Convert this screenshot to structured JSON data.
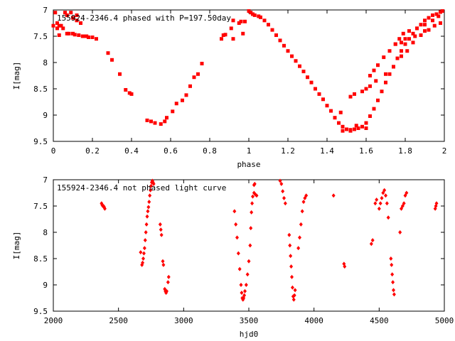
{
  "chart_data": [
    {
      "type": "scatter",
      "title": "155924-2346.4 phased with P=197.50day",
      "xlabel": "phase",
      "ylabel": "I[mag]",
      "xlim": [
        0,
        2
      ],
      "ylim": [
        7,
        9.5
      ],
      "y_inverted": true,
      "x_ticks": [
        "0",
        "0.2",
        "0.4",
        "0.6",
        "0.8",
        "1",
        "1.2",
        "1.4",
        "1.6",
        "1.8",
        "2"
      ],
      "y_ticks": [
        "7",
        "7.5",
        "8",
        "8.5",
        "9",
        "9.5"
      ],
      "marker": "filled square",
      "color": "#ff0000",
      "points": [
        [
          0.0,
          7.3
        ],
        [
          0.01,
          7.05
        ],
        [
          0.02,
          7.25
        ],
        [
          0.02,
          7.35
        ],
        [
          0.03,
          7.3
        ],
        [
          0.03,
          7.48
        ],
        [
          0.04,
          7.3
        ],
        [
          0.05,
          7.35
        ],
        [
          0.06,
          7.05
        ],
        [
          0.07,
          7.45
        ],
        [
          0.07,
          7.1
        ],
        [
          0.08,
          7.45
        ],
        [
          0.09,
          7.05
        ],
        [
          0.1,
          7.45
        ],
        [
          0.1,
          7.15
        ],
        [
          0.11,
          7.47
        ],
        [
          0.12,
          7.1
        ],
        [
          0.12,
          7.2
        ],
        [
          0.13,
          7.48
        ],
        [
          0.14,
          7.25
        ],
        [
          0.15,
          7.5
        ],
        [
          0.16,
          7.5
        ],
        [
          0.17,
          7.5
        ],
        [
          0.18,
          7.52
        ],
        [
          0.2,
          7.52
        ],
        [
          0.22,
          7.55
        ],
        [
          0.28,
          7.82
        ],
        [
          0.3,
          7.95
        ],
        [
          0.34,
          8.22
        ],
        [
          0.37,
          8.52
        ],
        [
          0.39,
          8.58
        ],
        [
          0.4,
          8.6
        ],
        [
          0.48,
          9.1
        ],
        [
          0.5,
          9.12
        ],
        [
          0.52,
          9.15
        ],
        [
          0.55,
          9.17
        ],
        [
          0.57,
          9.12
        ],
        [
          0.58,
          9.05
        ],
        [
          0.61,
          8.93
        ],
        [
          0.63,
          8.78
        ],
        [
          0.66,
          8.72
        ],
        [
          0.68,
          8.62
        ],
        [
          0.7,
          8.45
        ],
        [
          0.72,
          8.28
        ],
        [
          0.74,
          8.22
        ],
        [
          0.76,
          8.02
        ],
        [
          0.86,
          7.55
        ],
        [
          0.87,
          7.48
        ],
        [
          0.88,
          7.47
        ],
        [
          0.91,
          7.35
        ],
        [
          0.92,
          7.2
        ],
        [
          0.92,
          7.55
        ],
        [
          0.95,
          7.25
        ],
        [
          0.96,
          7.22
        ],
        [
          0.97,
          7.45
        ],
        [
          0.98,
          7.22
        ],
        [
          1.0,
          7.02
        ],
        [
          1.01,
          7.05
        ],
        [
          1.02,
          7.08
        ],
        [
          1.03,
          7.1
        ],
        [
          1.05,
          7.12
        ],
        [
          1.06,
          7.14
        ],
        [
          1.08,
          7.2
        ],
        [
          1.1,
          7.28
        ],
        [
          1.12,
          7.38
        ],
        [
          1.14,
          7.48
        ],
        [
          1.16,
          7.58
        ],
        [
          1.18,
          7.68
        ],
        [
          1.2,
          7.78
        ],
        [
          1.22,
          7.88
        ],
        [
          1.24,
          7.97
        ],
        [
          1.26,
          8.07
        ],
        [
          1.28,
          8.17
        ],
        [
          1.3,
          8.28
        ],
        [
          1.32,
          8.38
        ],
        [
          1.34,
          8.5
        ],
        [
          1.36,
          8.6
        ],
        [
          1.38,
          8.7
        ],
        [
          1.4,
          8.82
        ],
        [
          1.42,
          8.92
        ],
        [
          1.44,
          9.05
        ],
        [
          1.46,
          9.15
        ],
        [
          1.48,
          9.22
        ],
        [
          1.5,
          9.27
        ],
        [
          1.52,
          9.28
        ],
        [
          1.54,
          9.27
        ],
        [
          1.56,
          9.25
        ],
        [
          1.58,
          9.22
        ],
        [
          1.6,
          9.15
        ],
        [
          1.62,
          9.02
        ],
        [
          1.64,
          8.88
        ],
        [
          1.66,
          8.72
        ],
        [
          1.68,
          8.55
        ],
        [
          1.7,
          8.38
        ],
        [
          1.72,
          8.22
        ],
        [
          1.74,
          8.08
        ],
        [
          1.76,
          7.92
        ],
        [
          1.78,
          7.78
        ],
        [
          1.8,
          7.65
        ],
        [
          1.82,
          7.55
        ],
        [
          1.84,
          7.45
        ],
        [
          1.86,
          7.35
        ],
        [
          1.88,
          7.28
        ],
        [
          1.9,
          7.2
        ],
        [
          1.92,
          7.15
        ],
        [
          1.94,
          7.1
        ],
        [
          1.96,
          7.08
        ],
        [
          1.98,
          7.04
        ],
        [
          1.99,
          7.02
        ],
        [
          1.48,
          9.3
        ],
        [
          1.52,
          9.3
        ],
        [
          1.55,
          9.2
        ],
        [
          1.6,
          9.25
        ],
        [
          1.47,
          8.95
        ],
        [
          1.52,
          8.65
        ],
        [
          1.54,
          8.6
        ],
        [
          1.58,
          8.55
        ],
        [
          1.6,
          8.5
        ],
        [
          1.62,
          8.45
        ],
        [
          1.65,
          8.35
        ],
        [
          1.7,
          8.22
        ],
        [
          1.74,
          8.08
        ],
        [
          1.78,
          7.88
        ],
        [
          1.81,
          7.78
        ],
        [
          1.84,
          7.62
        ],
        [
          1.88,
          7.48
        ],
        [
          1.92,
          7.38
        ],
        [
          1.95,
          7.3
        ],
        [
          1.98,
          7.25
        ],
        [
          1.62,
          8.25
        ],
        [
          1.64,
          8.15
        ],
        [
          1.66,
          8.05
        ],
        [
          1.69,
          7.9
        ],
        [
          1.72,
          7.78
        ],
        [
          1.75,
          7.65
        ],
        [
          1.77,
          7.55
        ],
        [
          1.79,
          7.45
        ],
        [
          1.82,
          7.4
        ],
        [
          1.86,
          7.35
        ],
        [
          1.9,
          7.28
        ],
        [
          1.94,
          7.2
        ],
        [
          1.97,
          7.12
        ],
        [
          1.8,
          7.55
        ],
        [
          1.85,
          7.5
        ],
        [
          1.9,
          7.4
        ],
        [
          1.75,
          7.65
        ],
        [
          1.78,
          7.62
        ]
      ]
    },
    {
      "type": "scatter",
      "title": "155924-2346.4 not phased light curve",
      "xlabel": "hjd0",
      "ylabel": "I[mag]",
      "xlim": [
        2000,
        5000
      ],
      "ylim": [
        7,
        9.5
      ],
      "y_inverted": true,
      "x_ticks": [
        "2000",
        "2500",
        "3000",
        "3500",
        "4000",
        "4500",
        "5000"
      ],
      "y_ticks": [
        "7",
        "7.5",
        "8",
        "8.5",
        "9",
        "9.5"
      ],
      "marker": "filled diamond",
      "color": "#ff0000",
      "points": [
        [
          2370,
          7.45
        ],
        [
          2375,
          7.48
        ],
        [
          2380,
          7.5
        ],
        [
          2385,
          7.5
        ],
        [
          2390,
          7.52
        ],
        [
          2395,
          7.55
        ],
        [
          2670,
          8.38
        ],
        [
          2680,
          8.62
        ],
        [
          2685,
          8.58
        ],
        [
          2690,
          8.5
        ],
        [
          2695,
          8.4
        ],
        [
          2700,
          8.3
        ],
        [
          2705,
          8.15
        ],
        [
          2710,
          8.0
        ],
        [
          2715,
          7.85
        ],
        [
          2720,
          7.7
        ],
        [
          2725,
          7.6
        ],
        [
          2730,
          7.52
        ],
        [
          2735,
          7.42
        ],
        [
          2740,
          7.3
        ],
        [
          2745,
          7.2
        ],
        [
          2750,
          7.12
        ],
        [
          2755,
          7.05
        ],
        [
          2760,
          7.02
        ],
        [
          2765,
          7.05
        ],
        [
          2770,
          7.08
        ],
        [
          2820,
          7.85
        ],
        [
          2825,
          7.95
        ],
        [
          2830,
          8.05
        ],
        [
          2840,
          8.55
        ],
        [
          2845,
          8.62
        ],
        [
          2855,
          9.08
        ],
        [
          2860,
          9.12
        ],
        [
          2865,
          9.15
        ],
        [
          2870,
          9.12
        ],
        [
          2880,
          8.95
        ],
        [
          2885,
          8.85
        ],
        [
          3390,
          7.6
        ],
        [
          3400,
          7.85
        ],
        [
          3410,
          8.1
        ],
        [
          3420,
          8.4
        ],
        [
          3430,
          8.7
        ],
        [
          3440,
          9.0
        ],
        [
          3445,
          9.15
        ],
        [
          3450,
          9.25
        ],
        [
          3455,
          9.28
        ],
        [
          3460,
          9.25
        ],
        [
          3465,
          9.2
        ],
        [
          3470,
          9.12
        ],
        [
          3480,
          9.0
        ],
        [
          3490,
          8.8
        ],
        [
          3500,
          8.55
        ],
        [
          3510,
          8.25
        ],
        [
          3515,
          7.92
        ],
        [
          3520,
          7.62
        ],
        [
          3525,
          7.45
        ],
        [
          3530,
          7.32
        ],
        [
          3540,
          7.25
        ],
        [
          3550,
          7.28
        ],
        [
          3560,
          7.3
        ],
        [
          3540,
          7.1
        ],
        [
          3545,
          7.08
        ],
        [
          3740,
          7.02
        ],
        [
          3750,
          7.08
        ],
        [
          3760,
          7.22
        ],
        [
          3770,
          7.35
        ],
        [
          3780,
          7.45
        ],
        [
          3810,
          8.05
        ],
        [
          3815,
          8.25
        ],
        [
          3820,
          8.45
        ],
        [
          3825,
          8.65
        ],
        [
          3830,
          8.85
        ],
        [
          3835,
          9.05
        ],
        [
          3840,
          9.22
        ],
        [
          3845,
          9.28
        ],
        [
          3850,
          9.2
        ],
        [
          3855,
          9.1
        ],
        [
          3880,
          8.3
        ],
        [
          3890,
          8.1
        ],
        [
          3900,
          7.85
        ],
        [
          3910,
          7.6
        ],
        [
          3920,
          7.42
        ],
        [
          3930,
          7.35
        ],
        [
          3940,
          7.3
        ],
        [
          4150,
          7.3
        ],
        [
          4230,
          8.6
        ],
        [
          4235,
          8.65
        ],
        [
          4440,
          8.22
        ],
        [
          4450,
          8.15
        ],
        [
          4470,
          7.45
        ],
        [
          4480,
          7.38
        ],
        [
          4500,
          7.55
        ],
        [
          4510,
          7.45
        ],
        [
          4520,
          7.35
        ],
        [
          4530,
          7.25
        ],
        [
          4540,
          7.2
        ],
        [
          4550,
          7.3
        ],
        [
          4560,
          7.45
        ],
        [
          4570,
          7.72
        ],
        [
          4590,
          8.5
        ],
        [
          4595,
          8.62
        ],
        [
          4600,
          8.8
        ],
        [
          4605,
          8.95
        ],
        [
          4610,
          9.1
        ],
        [
          4615,
          9.18
        ],
        [
          4660,
          8.0
        ],
        [
          4670,
          7.55
        ],
        [
          4680,
          7.5
        ],
        [
          4690,
          7.45
        ],
        [
          4700,
          7.3
        ],
        [
          4710,
          7.25
        ],
        [
          4930,
          7.55
        ],
        [
          4935,
          7.5
        ],
        [
          4940,
          7.45
        ]
      ]
    }
  ]
}
